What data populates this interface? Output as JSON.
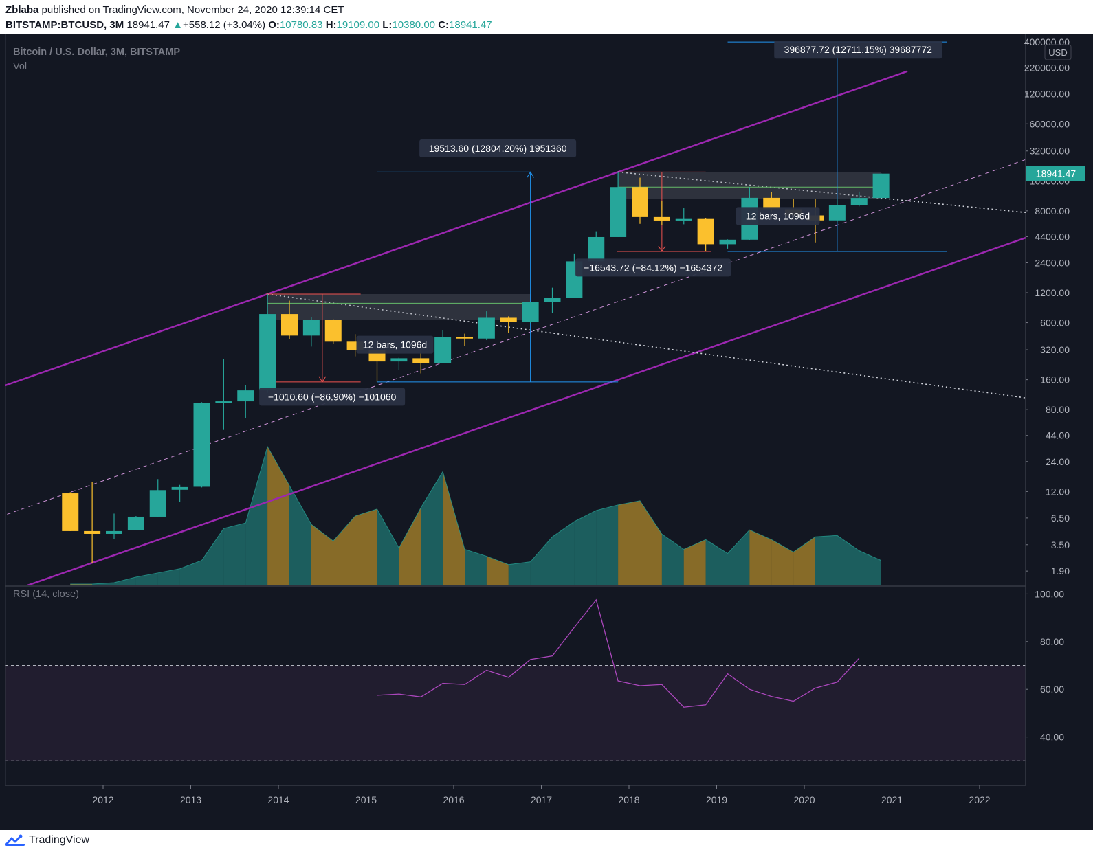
{
  "header": {
    "publisher": "Zblaba",
    "published_text": "published on TradingView.com, November 24, 2020 12:39:14 CET",
    "symbol": "BITSTAMP:BTCUSD, 3M",
    "last": "18941.47",
    "change": "+558.12 (+3.04%)",
    "o_label": "O:",
    "o": "10780.83",
    "h_label": "H:",
    "h": "19109.00",
    "l_label": "L:",
    "l": "10380.00",
    "c_label": "C:",
    "c": "18941.47"
  },
  "legend": {
    "title": "Bitcoin / U.S. Dollar, 3M, BITSTAMP",
    "vol": "Vol",
    "rsi": "RSI (14, close)"
  },
  "price_axis": {
    "currency": "USD",
    "last_price": "18941.47"
  },
  "footer": {
    "brand": "TradingView"
  },
  "colors": {
    "up": "#26a69a",
    "down": "#fbc02d",
    "channel": "#9c27b0",
    "bg": "#131722",
    "rsi": "#ab47bc"
  },
  "chart_data": [
    {
      "type": "candlestick",
      "scale": "log",
      "ylim": [
        1.5,
        420000
      ],
      "y_ticks": [
        "400000.00",
        "220000.00",
        "120000.00",
        "60000.00",
        "32000.00",
        "16000.00",
        "8000.00",
        "4400.00",
        "2400.00",
        "1200.00",
        "600.00",
        "320.00",
        "160.00",
        "80.00",
        "44.00",
        "24.00",
        "12.00",
        "6.50",
        "3.50",
        "1.90"
      ],
      "x_ticks": [
        "2012",
        "2013",
        "2014",
        "2015",
        "2016",
        "2017",
        "2018",
        "2019",
        "2020",
        "2021",
        "2022"
      ],
      "candles": [
        {
          "t": "2011-Q3",
          "o": 11.5,
          "h": 11.8,
          "l": 4.8,
          "c": 4.8
        },
        {
          "t": "2011-Q4",
          "o": 4.8,
          "h": 15,
          "l": 2.3,
          "c": 4.5
        },
        {
          "t": "2012-Q1",
          "o": 4.5,
          "h": 7.2,
          "l": 4.0,
          "c": 4.8
        },
        {
          "t": "2012-Q2",
          "o": 4.9,
          "h": 6.8,
          "l": 4.9,
          "c": 6.7
        },
        {
          "t": "2012-Q3",
          "o": 6.7,
          "h": 16,
          "l": 6.6,
          "c": 12.4
        },
        {
          "t": "2012-Q4",
          "o": 12.5,
          "h": 14,
          "l": 9.5,
          "c": 13.3
        },
        {
          "t": "2013-Q1",
          "o": 13.4,
          "h": 95,
          "l": 13.2,
          "c": 93
        },
        {
          "t": "2013-Q2",
          "o": 93,
          "h": 260,
          "l": 50,
          "c": 97
        },
        {
          "t": "2013-Q3",
          "o": 97,
          "h": 140,
          "l": 66,
          "c": 125
        },
        {
          "t": "2013-Q4",
          "o": 125,
          "h": 1163,
          "l": 118,
          "c": 732
        },
        {
          "t": "2014-Q1",
          "o": 732,
          "h": 1000,
          "l": 410,
          "c": 445
        },
        {
          "t": "2014-Q2",
          "o": 445,
          "h": 680,
          "l": 345,
          "c": 640
        },
        {
          "t": "2014-Q3",
          "o": 640,
          "h": 650,
          "l": 367,
          "c": 386
        },
        {
          "t": "2014-Q4",
          "o": 386,
          "h": 460,
          "l": 275,
          "c": 318
        },
        {
          "t": "2015-Q1",
          "o": 318,
          "h": 335,
          "l": 152,
          "c": 244
        },
        {
          "t": "2015-Q2",
          "o": 244,
          "h": 267,
          "l": 199,
          "c": 263
        },
        {
          "t": "2015-Q3",
          "o": 263,
          "h": 316,
          "l": 185,
          "c": 236
        },
        {
          "t": "2015-Q4",
          "o": 236,
          "h": 502,
          "l": 234,
          "c": 430
        },
        {
          "t": "2016-Q1",
          "o": 430,
          "h": 465,
          "l": 350,
          "c": 415
        },
        {
          "t": "2016-Q2",
          "o": 415,
          "h": 780,
          "l": 400,
          "c": 672
        },
        {
          "t": "2016-Q3",
          "o": 672,
          "h": 695,
          "l": 470,
          "c": 609
        },
        {
          "t": "2016-Q4",
          "o": 609,
          "h": 975,
          "l": 592,
          "c": 964
        },
        {
          "t": "2017-Q1",
          "o": 964,
          "h": 1350,
          "l": 752,
          "c": 1071
        },
        {
          "t": "2017-Q2",
          "o": 1071,
          "h": 2980,
          "l": 1062,
          "c": 2480
        },
        {
          "t": "2017-Q3",
          "o": 2480,
          "h": 4980,
          "l": 1840,
          "c": 4360
        },
        {
          "t": "2017-Q4",
          "o": 4360,
          "h": 19666,
          "l": 4360,
          "c": 13880
        },
        {
          "t": "2018-Q1",
          "o": 13880,
          "h": 17252,
          "l": 5920,
          "c": 6928
        },
        {
          "t": "2018-Q2",
          "o": 6928,
          "h": 9990,
          "l": 5755,
          "c": 6390
        },
        {
          "t": "2018-Q3",
          "o": 6390,
          "h": 8500,
          "l": 5859,
          "c": 6626
        },
        {
          "t": "2018-Q4",
          "o": 6626,
          "h": 6800,
          "l": 3122,
          "c": 3693
        },
        {
          "t": "2019-Q1",
          "o": 3693,
          "h": 4134,
          "l": 3330,
          "c": 4102
        },
        {
          "t": "2019-Q2",
          "o": 4102,
          "h": 13880,
          "l": 4070,
          "c": 10818
        },
        {
          "t": "2019-Q3",
          "o": 10818,
          "h": 12330,
          "l": 7700,
          "c": 8302
        },
        {
          "t": "2019-Q4",
          "o": 8302,
          "h": 10540,
          "l": 6428,
          "c": 7194
        },
        {
          "t": "2020-Q1",
          "o": 7194,
          "h": 10500,
          "l": 3850,
          "c": 6410
        },
        {
          "t": "2020-Q2",
          "o": 6410,
          "h": 10430,
          "l": 6178,
          "c": 9135
        },
        {
          "t": "2020-Q3",
          "o": 9135,
          "h": 12490,
          "l": 8880,
          "c": 10780
        },
        {
          "t": "2020-Q4",
          "o": 10780.83,
          "h": 19109,
          "l": 10380,
          "c": 18941.47
        }
      ],
      "volume_relative": [
        0.01,
        0.01,
        0.02,
        0.06,
        0.09,
        0.12,
        0.18,
        0.41,
        0.45,
        1.0,
        0.72,
        0.44,
        0.32,
        0.5,
        0.55,
        0.27,
        0.56,
        0.82,
        0.26,
        0.21,
        0.15,
        0.17,
        0.35,
        0.46,
        0.54,
        0.58,
        0.61,
        0.37,
        0.26,
        0.33,
        0.23,
        0.4,
        0.33,
        0.24,
        0.35,
        0.36,
        0.25,
        0.18
      ],
      "annotations": [
        {
          "text": "−1010.60 (−86.90%) −101060"
        },
        {
          "text": "19513.60 (12804.20%) 1951360"
        },
        {
          "text": "−16543.72 (−84.12%) −1654372"
        },
        {
          "text": "396877.72 (12711.15%) 39687772"
        },
        {
          "text": "12 bars, 1096d"
        },
        {
          "text": "12 bars, 1096d"
        }
      ]
    },
    {
      "type": "line",
      "title": "RSI (14, close)",
      "ylim": [
        20,
        103
      ],
      "y_ticks": [
        "100.00",
        "80.00",
        "60.00",
        "40.00"
      ],
      "bands": [
        70,
        30
      ],
      "x_start": "2015-Q1",
      "values": [
        57.5,
        58.0,
        56.8,
        62.5,
        62.0,
        68.0,
        65.0,
        72.5,
        74.0,
        86.0,
        97.5,
        63.5,
        61.5,
        62.0,
        52.5,
        53.5,
        66.5,
        60.0,
        57.0,
        55.0,
        60.5,
        63.0,
        73.0
      ]
    }
  ]
}
